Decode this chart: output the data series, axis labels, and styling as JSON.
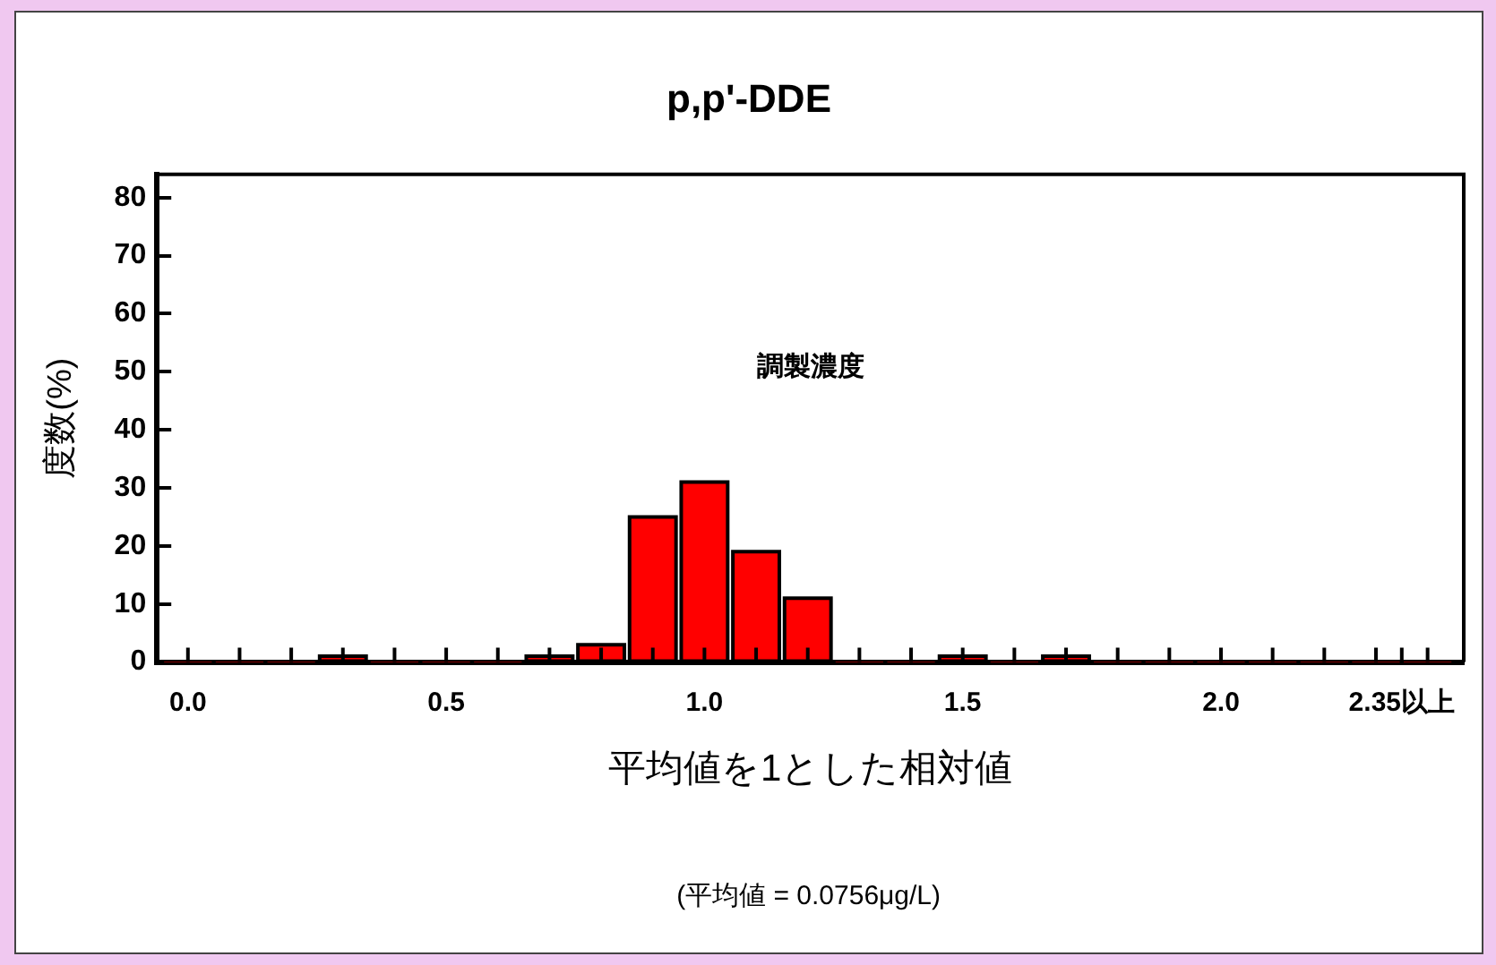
{
  "chart_data": {
    "type": "histogram",
    "title": "p,p'-DDE",
    "xlabel": "平均値を1とした相対値",
    "ylabel": "度数(%)",
    "annotations": [
      "調製濃度",
      "(平均値 = 0.0756μg/L)"
    ],
    "bins": [
      -0.05,
      0.05,
      0.15,
      0.25,
      0.35,
      0.45,
      0.55,
      0.65,
      0.75,
      0.85,
      0.95,
      1.05,
      1.15,
      1.25,
      1.35,
      1.45,
      1.55,
      1.65,
      1.75,
      1.85,
      1.95,
      2.05,
      2.15,
      2.25,
      2.35,
      2.45
    ],
    "values": [
      0,
      0,
      0,
      1,
      0,
      0,
      0,
      1,
      3,
      25,
      31,
      19,
      11,
      0,
      0,
      1,
      0,
      1,
      0,
      0,
      0,
      0,
      0,
      0,
      0
    ],
    "color": "#ff0000",
    "xlim": [
      -0.06,
      2.47
    ],
    "xticks": [
      {
        "value": 0,
        "label": "0.0"
      },
      {
        "value": 0.1,
        "label": null
      },
      {
        "value": 0.2,
        "label": null
      },
      {
        "value": 0.3,
        "label": null
      },
      {
        "value": 0.4,
        "label": null
      },
      {
        "value": 0.5,
        "label": "0.5"
      },
      {
        "value": 0.6,
        "label": null
      },
      {
        "value": 0.7,
        "label": null
      },
      {
        "value": 0.8,
        "label": null
      },
      {
        "value": 0.9,
        "label": null
      },
      {
        "value": 1,
        "label": "1.0"
      },
      {
        "value": 1.1,
        "label": null
      },
      {
        "value": 1.2,
        "label": null
      },
      {
        "value": 1.3,
        "label": null
      },
      {
        "value": 1.4,
        "label": null
      },
      {
        "value": 1.5,
        "label": "1.5"
      },
      {
        "value": 1.6,
        "label": null
      },
      {
        "value": 1.7,
        "label": null
      },
      {
        "value": 1.8,
        "label": null
      },
      {
        "value": 1.9,
        "label": null
      },
      {
        "value": 2,
        "label": "2.0"
      },
      {
        "value": 2.1,
        "label": null
      },
      {
        "value": 2.2,
        "label": null
      },
      {
        "value": 2.3,
        "label": null
      },
      {
        "value": 2.35,
        "label": "2.35以上"
      },
      {
        "value": 2.4,
        "label": null
      }
    ],
    "ylim": [
      0,
      84
    ],
    "yticks": [
      0,
      10,
      20,
      30,
      40,
      50,
      60,
      70,
      80
    ],
    "grid": false,
    "legend": false
  }
}
